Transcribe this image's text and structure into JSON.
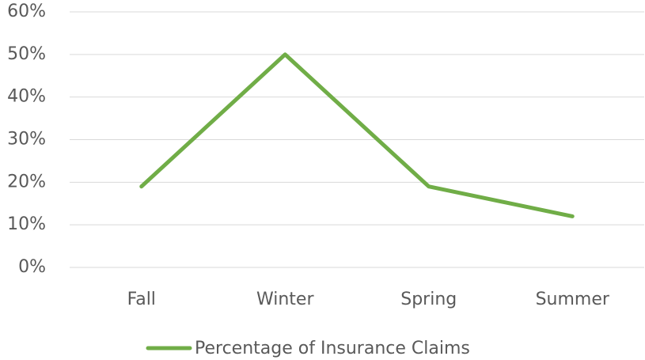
{
  "chart_data": {
    "type": "line",
    "categories": [
      "Fall",
      "Winter",
      "Spring",
      "Summer"
    ],
    "series": [
      {
        "name": "Percentage of Insurance Claims",
        "color": "#70ad47",
        "values": [
          19,
          50,
          19,
          12
        ]
      }
    ],
    "ylim": [
      0,
      60
    ],
    "yticks": [
      {
        "value": 0,
        "label": "0%"
      },
      {
        "value": 10,
        "label": "10%"
      },
      {
        "value": 20,
        "label": "20%"
      },
      {
        "value": 30,
        "label": "30%"
      },
      {
        "value": 40,
        "label": "40%"
      },
      {
        "value": 50,
        "label": "50%"
      },
      {
        "value": 60,
        "label": "60%"
      }
    ],
    "grid": true,
    "legend": "bottom"
  }
}
